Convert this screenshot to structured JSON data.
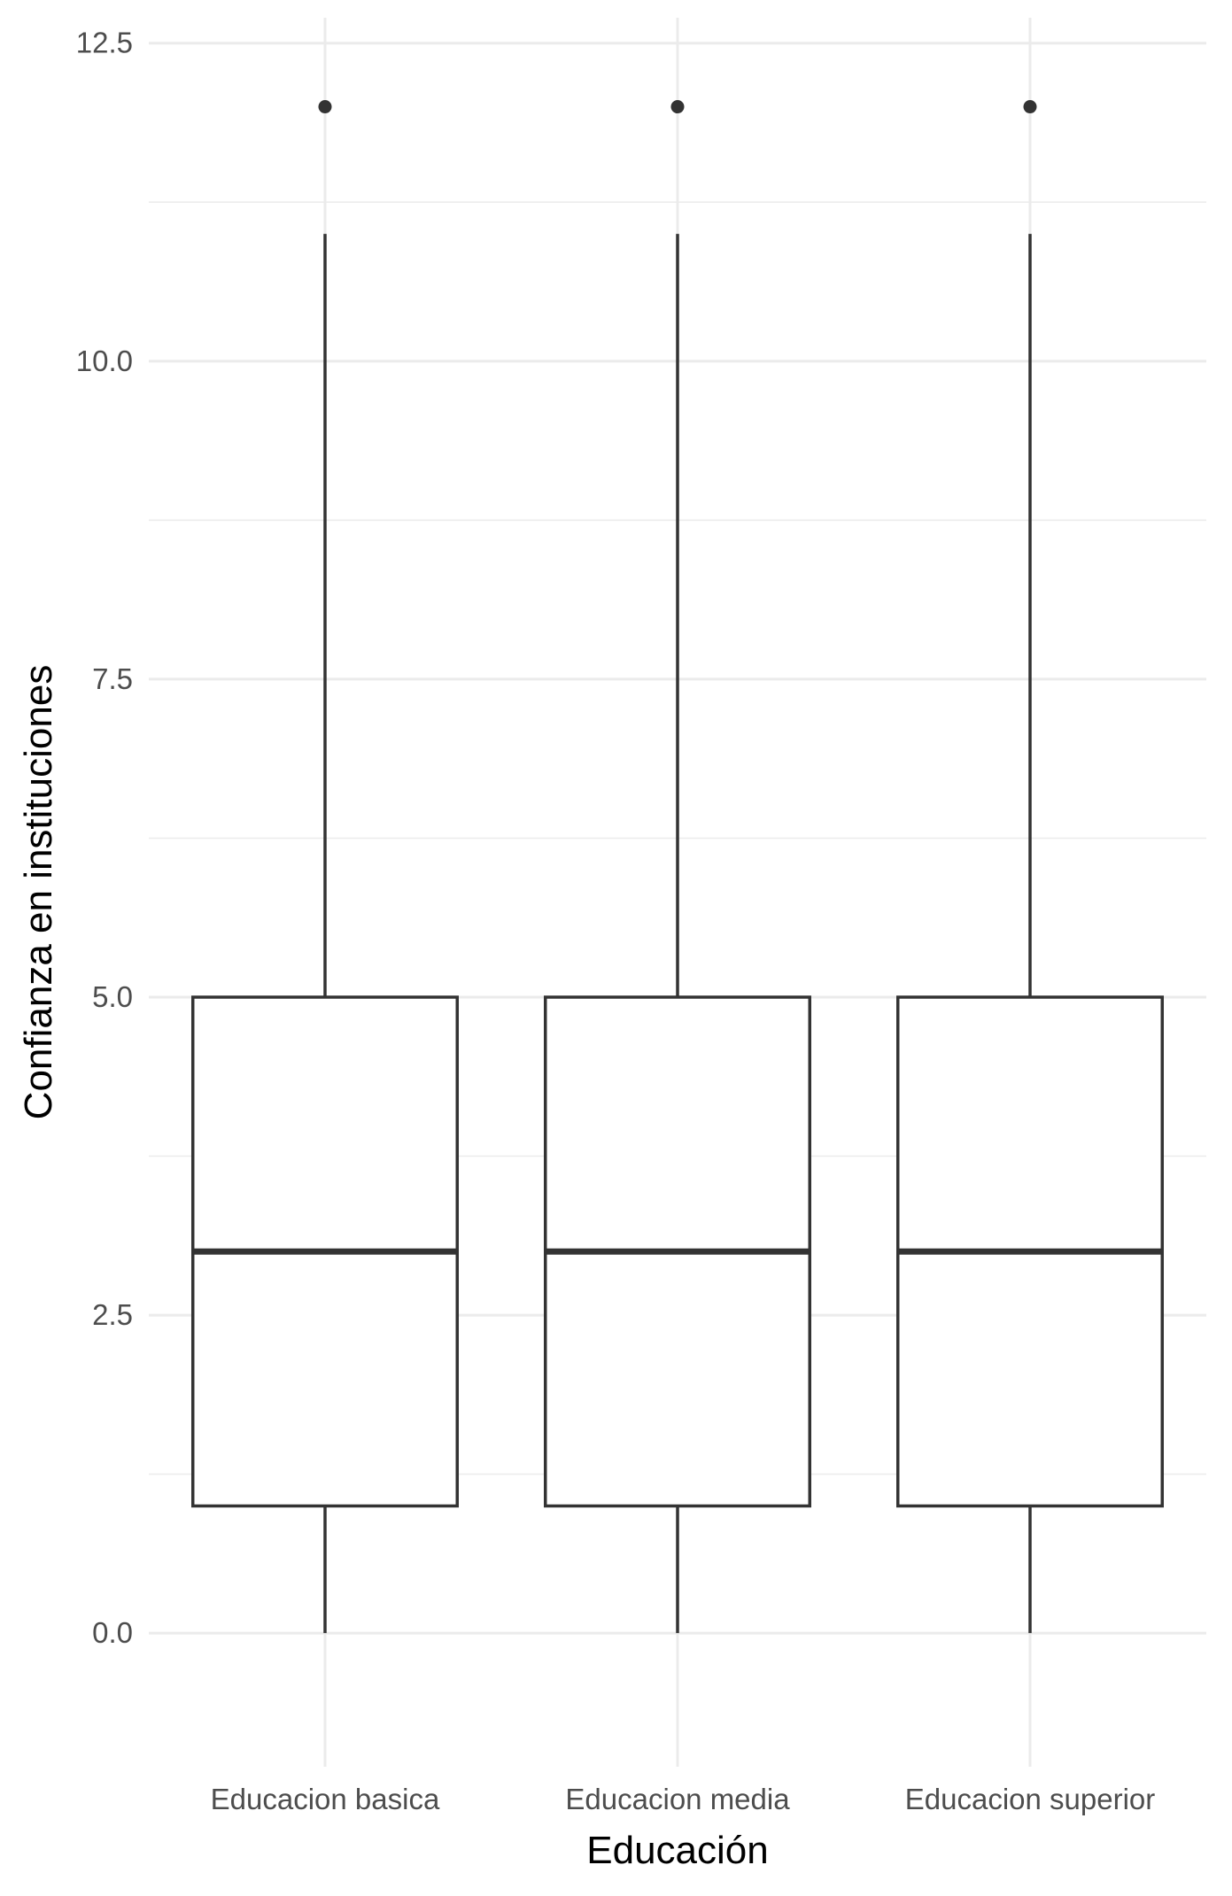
{
  "chart_data": {
    "type": "boxplot",
    "title": "",
    "xlabel": "Educación",
    "ylabel": "Confianza en instituciones",
    "ylim": [
      -1.05,
      12.7
    ],
    "yticks": [
      0.0,
      2.5,
      5.0,
      7.5,
      10.0,
      12.5
    ],
    "ytick_labels": [
      "0.0",
      "2.5",
      "5.0",
      "7.5",
      "10.0",
      "12.5"
    ],
    "categories": [
      "Educacion basica",
      "Educacion media",
      "Educacion superior"
    ],
    "boxes": [
      {
        "category": "Educacion basica",
        "whisker_low": 0,
        "q1": 1,
        "median": 3,
        "q3": 5,
        "whisker_high": 11,
        "outliers": [
          12
        ]
      },
      {
        "category": "Educacion media",
        "whisker_low": 0,
        "q1": 1,
        "median": 3,
        "q3": 5,
        "whisker_high": 11,
        "outliers": [
          12
        ]
      },
      {
        "category": "Educacion superior",
        "whisker_low": 0,
        "q1": 1,
        "median": 3,
        "q3": 5,
        "whisker_high": 11,
        "outliers": [
          12
        ]
      }
    ],
    "grid": true,
    "legend": "none",
    "colors": {
      "box_fill": "#ffffff",
      "box_line": "#333333",
      "grid": "#ebebeb",
      "tick_text": "#4d4d4d"
    }
  }
}
